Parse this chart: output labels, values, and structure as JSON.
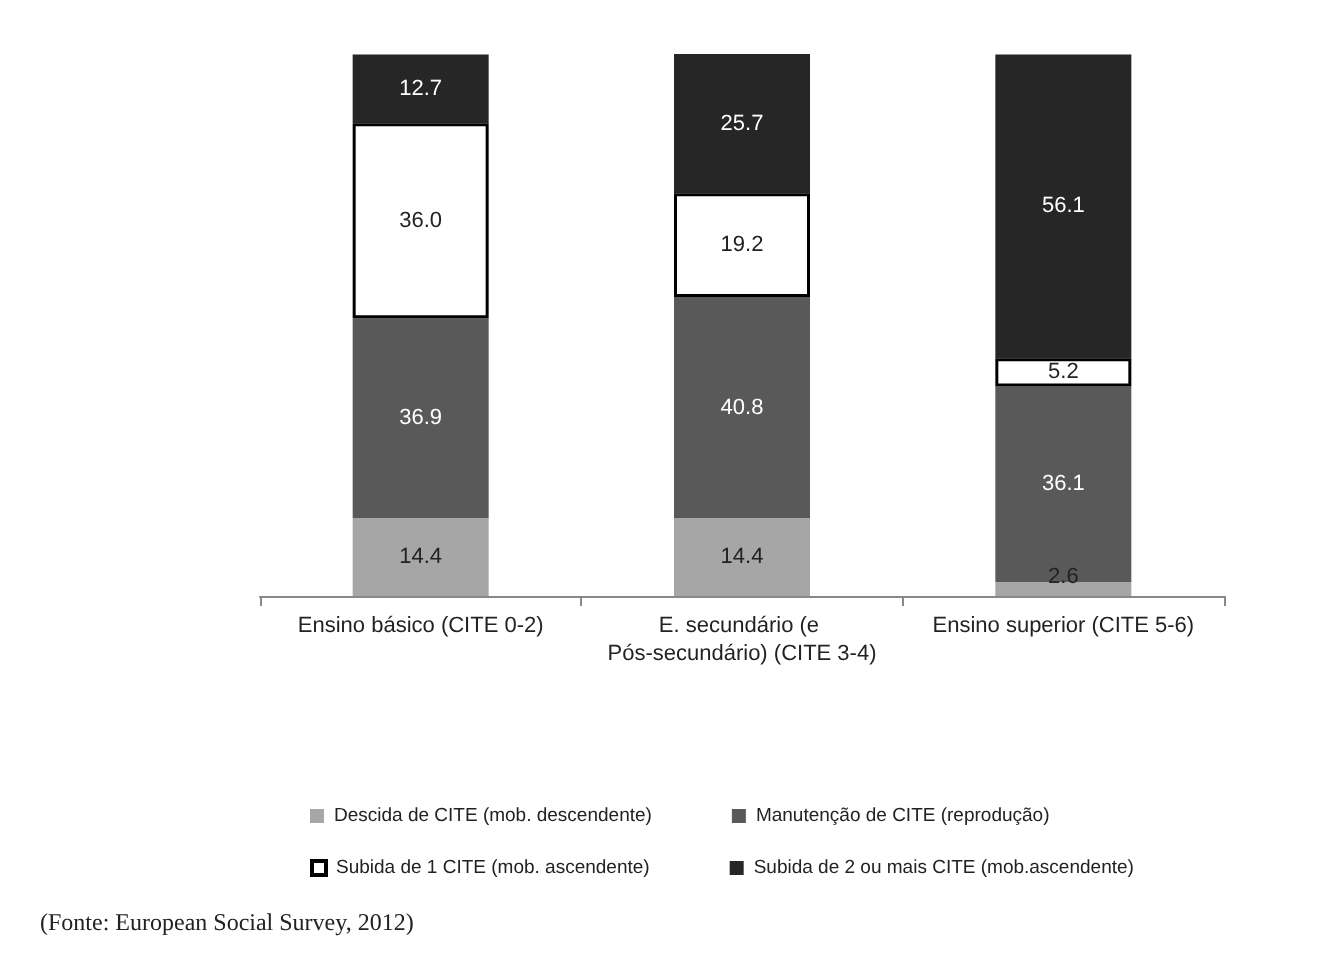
{
  "chart_data": {
    "type": "bar",
    "stacked": true,
    "legend": "bottom",
    "categories": [
      "Ensino básico (CITE 0-2)",
      "E. secundário (e Pós-secundário) (CITE 3-4)",
      "Ensino superior (CITE 5-6)"
    ],
    "series": [
      {
        "name": "Descida de CITE (mob. descendente)",
        "color": "#a6a6a6",
        "values": [
          14.4,
          14.4,
          2.6
        ],
        "value_labels": [
          "14.4",
          "14.4",
          "2.6"
        ]
      },
      {
        "name": "Manutenção de CITE (reprodução)",
        "color": "#595959",
        "values": [
          36.9,
          40.8,
          36.1
        ],
        "value_labels": [
          "36.9",
          "40.8",
          "36.1"
        ]
      },
      {
        "name": "Subida de 1 CITE (mob. ascendente)",
        "color": "#ffffff",
        "values": [
          36.0,
          19.2,
          5.2
        ],
        "value_labels": [
          "36.0",
          "19.2",
          "5.2"
        ]
      },
      {
        "name": "Subida de 2 ou mais CITE (mob.ascendente)",
        "color": "#262626",
        "values": [
          12.7,
          25.7,
          56.1
        ],
        "value_labels": [
          "12.7",
          "25.7",
          "56.1"
        ]
      }
    ],
    "annotations": [
      "(Fonte: European Social Survey, 2012)"
    ]
  }
}
